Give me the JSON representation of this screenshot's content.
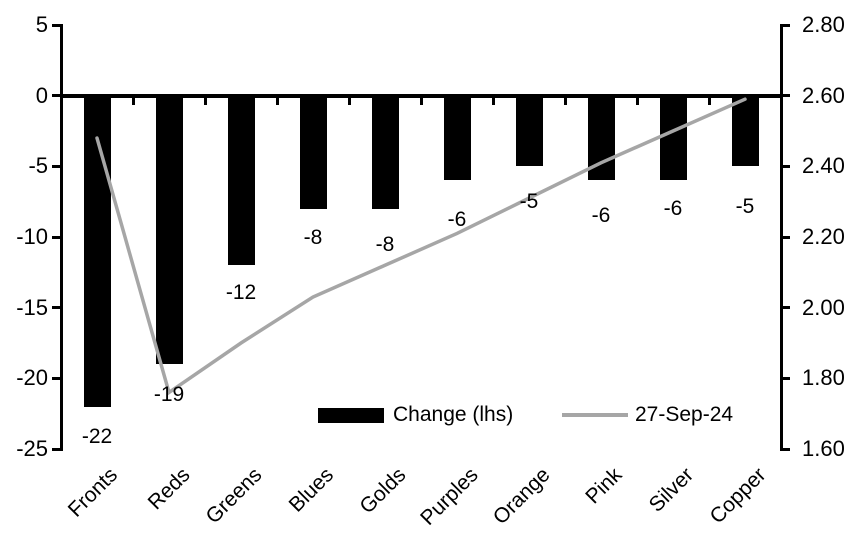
{
  "chart_data": {
    "type": "bar",
    "title": "",
    "categories": [
      "Fronts",
      "Reds",
      "Greens",
      "Blues",
      "Golds",
      "Purples",
      "Orange",
      "Pink",
      "Silver",
      "Copper"
    ],
    "series": [
      {
        "name": "Change (lhs)",
        "render": "bar",
        "axis": "left",
        "color": "#000000",
        "values": [
          -22,
          -19,
          -12,
          -8,
          -8,
          -6,
          -5,
          -6,
          -6,
          -5
        ],
        "data_labels": [
          "-22",
          "-19",
          "-12",
          "-8",
          "-8",
          "-6",
          "-5",
          "-6",
          "-6",
          "-5"
        ]
      },
      {
        "name": "27-Sep-24",
        "render": "line",
        "axis": "right",
        "color": "#a6a6a6",
        "values": [
          2.48,
          1.76,
          1.9,
          2.03,
          2.12,
          2.21,
          2.31,
          2.41,
          2.5,
          2.59
        ]
      }
    ],
    "left_axis": {
      "min": -25,
      "max": 5,
      "tick_labels": [
        "5",
        "0",
        "-5",
        "-10",
        "-15",
        "-20",
        "-25"
      ]
    },
    "right_axis": {
      "min": 1.6,
      "max": 2.8,
      "tick_labels": [
        "2.80",
        "2.60",
        "2.40",
        "2.20",
        "2.00",
        "1.80",
        "1.60"
      ]
    },
    "legend": {
      "position": "bottom-inside",
      "bar_label": "Change (lhs)",
      "line_label": "27-Sep-24"
    },
    "grid": false,
    "background": "#ffffff",
    "bar_color": "#000000",
    "line_color": "#a6a6a6"
  }
}
